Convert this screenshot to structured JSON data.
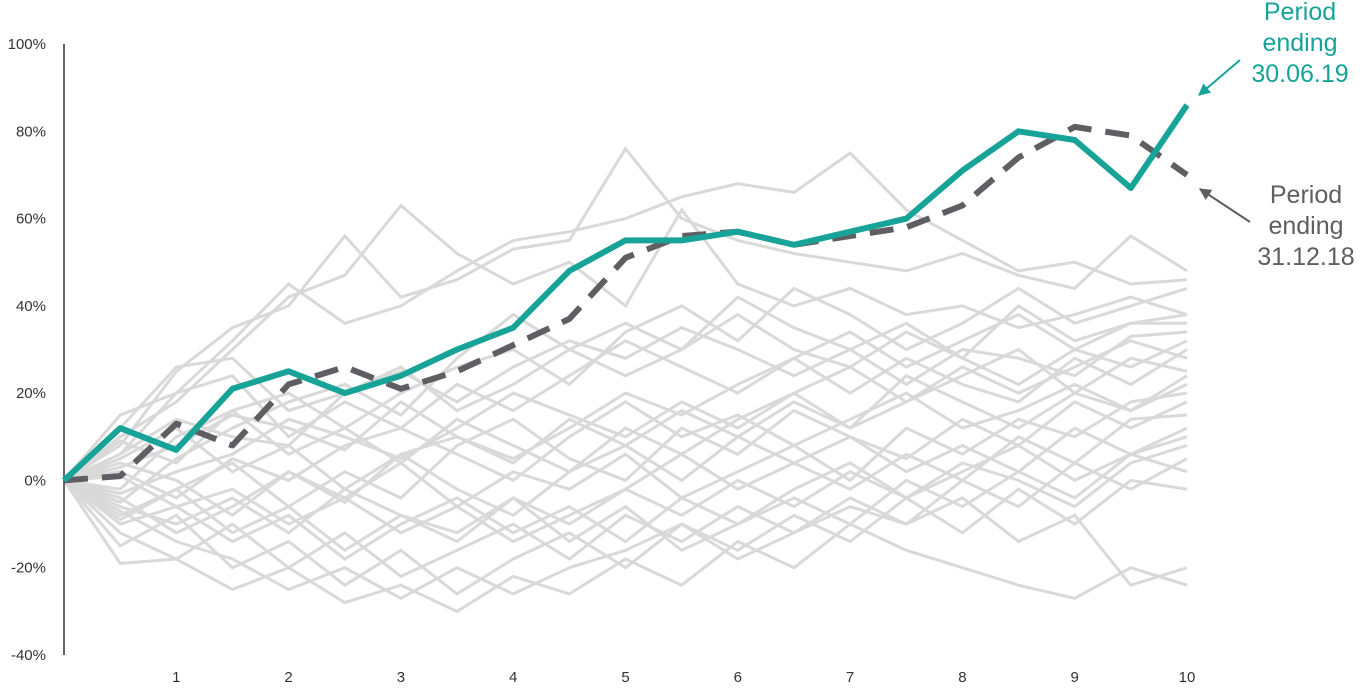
{
  "chart_data": {
    "type": "line",
    "title": "",
    "xlabel": "",
    "ylabel": "",
    "x": [
      0,
      0.5,
      1,
      1.5,
      2,
      2.5,
      3,
      3.5,
      4,
      4.5,
      5,
      5.5,
      6,
      6.5,
      7,
      7.5,
      8,
      8.5,
      9,
      9.5,
      10
    ],
    "x_ticks": [
      "1",
      "2",
      "3",
      "4",
      "5",
      "6",
      "7",
      "8",
      "9",
      "10"
    ],
    "x_tick_values": [
      1,
      2,
      3,
      4,
      5,
      6,
      7,
      8,
      9,
      10
    ],
    "y_ticks": [
      "100%",
      "80%",
      "60%",
      "40%",
      "20%",
      "0%",
      "-20%",
      "-40%"
    ],
    "y_tick_values": [
      100,
      80,
      60,
      40,
      20,
      0,
      -20,
      -40
    ],
    "ylim": [
      -40,
      100
    ],
    "xlim": [
      0,
      10
    ],
    "grid": false,
    "legend": "none",
    "colors": {
      "highlight": "#17a398",
      "dashed": "#5f5f63",
      "background": "#d9d9d9",
      "axis": "#333333"
    },
    "series": [
      {
        "values": [
          0,
          12,
          7,
          21,
          25,
          20,
          24,
          30,
          35,
          48,
          55,
          55,
          57,
          54,
          57,
          60,
          71,
          80,
          78,
          67,
          86
        ]
      },
      {
        "values": [
          0,
          1,
          13,
          8,
          22,
          26,
          21,
          25,
          31,
          37,
          51,
          56,
          57,
          54,
          56,
          58,
          63,
          74,
          81,
          79,
          70
        ]
      }
    ],
    "background_series": [
      {
        "values": [
          0,
          15,
          20,
          32,
          45,
          36,
          40,
          48,
          55,
          57,
          60,
          65,
          68,
          66,
          75,
          62,
          55,
          48,
          50,
          45,
          46
        ]
      },
      {
        "values": [
          0,
          8,
          25,
          35,
          40,
          56,
          42,
          46,
          53,
          55,
          76,
          60,
          55,
          52,
          50,
          48,
          52,
          47,
          44,
          56,
          48
        ]
      },
      {
        "values": [
          0,
          10,
          18,
          30,
          42,
          47,
          63,
          52,
          45,
          50,
          40,
          62,
          45,
          40,
          44,
          38,
          40,
          35,
          38,
          42,
          38
        ]
      },
      {
        "values": [
          0,
          -5,
          5,
          12,
          18,
          22,
          15,
          28,
          38,
          30,
          36,
          30,
          42,
          35,
          30,
          36,
          28,
          40,
          32,
          36,
          36
        ]
      },
      {
        "values": [
          0,
          6,
          14,
          10,
          8,
          20,
          25,
          18,
          26,
          32,
          28,
          35,
          30,
          24,
          30,
          22,
          30,
          28,
          24,
          33,
          34
        ]
      },
      {
        "values": [
          0,
          3,
          8,
          15,
          12,
          7,
          18,
          10,
          5,
          12,
          20,
          15,
          22,
          28,
          20,
          28,
          22,
          18,
          28,
          22,
          30
        ]
      },
      {
        "values": [
          0,
          -3,
          2,
          6,
          14,
          10,
          5,
          12,
          20,
          15,
          10,
          18,
          12,
          20,
          26,
          18,
          24,
          30,
          20,
          28,
          25
        ]
      },
      {
        "values": [
          0,
          2,
          -4,
          5,
          0,
          8,
          12,
          6,
          0,
          10,
          18,
          10,
          15,
          8,
          14,
          20,
          12,
          16,
          22,
          16,
          22
        ]
      },
      {
        "values": [
          0,
          -8,
          -2,
          4,
          -6,
          2,
          -4,
          8,
          14,
          5,
          0,
          12,
          6,
          16,
          10,
          5,
          14,
          8,
          18,
          12,
          18
        ]
      },
      {
        "values": [
          0,
          4,
          0,
          -8,
          2,
          -5,
          6,
          -2,
          -8,
          2,
          8,
          0,
          10,
          4,
          -2,
          6,
          0,
          10,
          4,
          14,
          15
        ]
      },
      {
        "values": [
          0,
          -6,
          -10,
          -4,
          -12,
          -2,
          -8,
          -14,
          -4,
          -10,
          -2,
          6,
          -2,
          4,
          10,
          2,
          8,
          2,
          12,
          6,
          12
        ]
      },
      {
        "values": [
          0,
          -10,
          -6,
          -14,
          -8,
          -18,
          -10,
          -4,
          -12,
          -6,
          -14,
          -4,
          -10,
          -2,
          4,
          -4,
          2,
          8,
          0,
          6,
          10
        ]
      },
      {
        "values": [
          0,
          -12,
          -18,
          -10,
          -20,
          -12,
          -22,
          -16,
          -10,
          -18,
          -8,
          -14,
          -6,
          -12,
          -4,
          -10,
          0,
          -6,
          4,
          -2,
          5
        ]
      },
      {
        "values": [
          0,
          -15,
          -8,
          -20,
          -14,
          -24,
          -16,
          -26,
          -18,
          -12,
          -20,
          -10,
          -16,
          -8,
          -14,
          -4,
          -12,
          -2,
          -10,
          0,
          -2
        ]
      },
      {
        "values": [
          0,
          -19,
          -18,
          -25,
          -20,
          -28,
          -24,
          -30,
          -22,
          -26,
          -18,
          -24,
          -14,
          -20,
          -10,
          -16,
          -20,
          -24,
          -27,
          -20,
          -24
        ]
      },
      {
        "values": [
          0,
          -7,
          -14,
          -18,
          -25,
          -20,
          -27,
          -20,
          -26,
          -20,
          -16,
          -10,
          -18,
          -12,
          -6,
          -10,
          -4,
          -14,
          -8,
          -24,
          -20
        ]
      },
      {
        "values": [
          0,
          12,
          26,
          28,
          16,
          20,
          26,
          16,
          22,
          30,
          24,
          30,
          38,
          30,
          26,
          34,
          28,
          22,
          30,
          26,
          32
        ]
      },
      {
        "values": [
          0,
          6,
          20,
          24,
          10,
          18,
          12,
          22,
          16,
          24,
          32,
          26,
          20,
          28,
          34,
          26,
          32,
          38,
          30,
          36,
          38
        ]
      },
      {
        "values": [
          0,
          -2,
          10,
          16,
          6,
          12,
          4,
          14,
          8,
          2,
          12,
          6,
          14,
          20,
          12,
          18,
          26,
          20,
          26,
          32,
          28
        ]
      },
      {
        "values": [
          0,
          -4,
          -12,
          -6,
          2,
          -4,
          4,
          -6,
          2,
          -2,
          6,
          -4,
          2,
          8,
          0,
          12,
          6,
          14,
          10,
          18,
          20
        ]
      },
      {
        "values": [
          0,
          1,
          -6,
          -2,
          -10,
          -4,
          -12,
          -6,
          -14,
          -8,
          -2,
          -8,
          0,
          -6,
          2,
          -4,
          4,
          0,
          -6,
          4,
          8
        ]
      },
      {
        "values": [
          0,
          -9,
          -2,
          -12,
          -6,
          -16,
          -8,
          -12,
          -4,
          -14,
          -6,
          -16,
          -10,
          -4,
          -10,
          0,
          -6,
          2,
          -4,
          6,
          2
        ]
      },
      {
        "values": [
          0,
          5,
          12,
          2,
          8,
          -2,
          6,
          10,
          4,
          14,
          8,
          16,
          10,
          18,
          12,
          24,
          18,
          12,
          20,
          16,
          24
        ]
      },
      {
        "values": [
          0,
          9,
          4,
          16,
          20,
          12,
          20,
          26,
          30,
          22,
          34,
          40,
          32,
          44,
          38,
          30,
          36,
          44,
          36,
          40,
          44
        ]
      }
    ],
    "annotations": [
      {
        "lines": [
          "Period",
          "ending",
          "30.06.19"
        ],
        "color": "#17a398",
        "points_to": {
          "x": 10,
          "y": 86
        }
      },
      {
        "lines": [
          "Period",
          "ending",
          "31.12.18"
        ],
        "color": "#5f5f63",
        "points_to": {
          "x": 10,
          "y": 70
        }
      }
    ]
  }
}
